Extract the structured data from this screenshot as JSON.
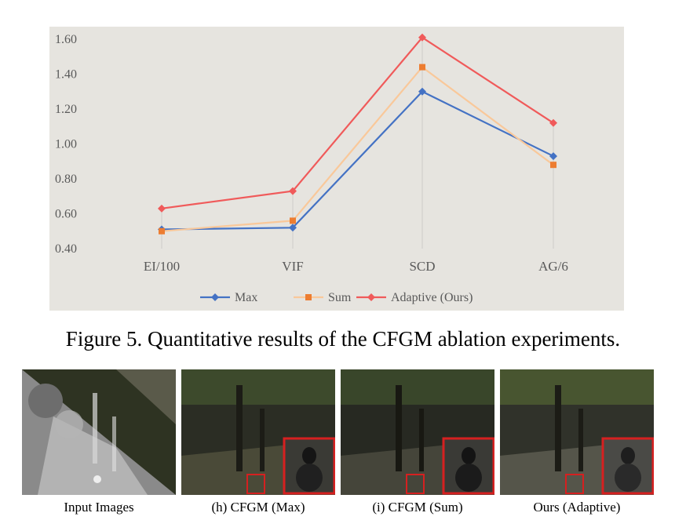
{
  "chart_data": {
    "type": "line",
    "categories": [
      "EI/100",
      "VIF",
      "SCD",
      "AG/6"
    ],
    "series": [
      {
        "name": "Max",
        "values": [
          0.51,
          0.52,
          1.3,
          0.93
        ],
        "color": "#4472c4",
        "marker": "diamond"
      },
      {
        "name": "Sum",
        "values": [
          0.5,
          0.56,
          1.44,
          0.88
        ],
        "color": "#ed7d31",
        "line_color": "#f9c89a",
        "marker": "square"
      },
      {
        "name": "Adaptive (Ours)",
        "values": [
          0.63,
          0.73,
          1.61,
          1.12
        ],
        "color": "#f05a5a",
        "marker": "diamond"
      }
    ],
    "ylim": [
      0.4,
      1.6
    ],
    "yticks": [
      "0.40",
      "0.60",
      "0.80",
      "1.00",
      "1.20",
      "1.40",
      "1.60"
    ],
    "grid": "vertical drop lines",
    "legend_position": "bottom",
    "background": "#e6e4df"
  },
  "caption": "Figure 5. Quantitative results of the CFGM ablation experiments.",
  "images": [
    {
      "label": "Input Images"
    },
    {
      "label": "(h) CFGM (Max)"
    },
    {
      "label": "(i) CFGM (Sum)"
    },
    {
      "label": "Ours (Adaptive)"
    }
  ]
}
